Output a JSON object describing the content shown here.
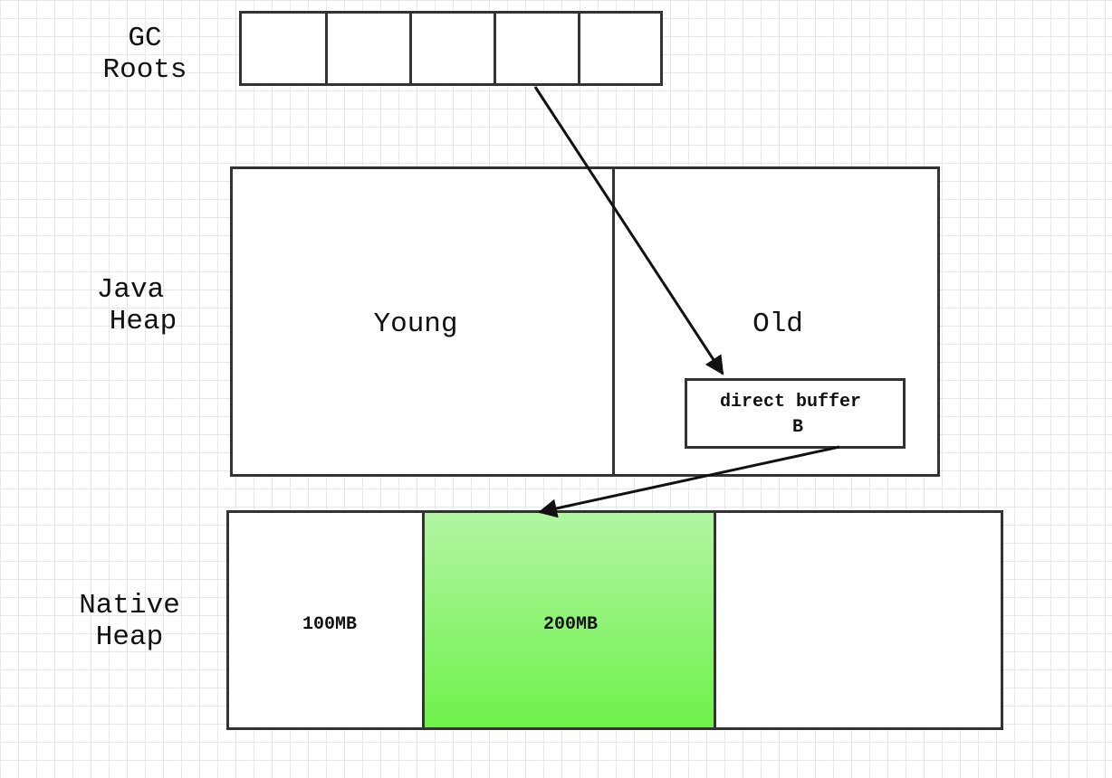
{
  "labels": {
    "gc_roots": [
      "GC",
      "Roots"
    ],
    "java_heap": [
      "Java",
      "Heap"
    ],
    "native_heap": [
      "Native",
      "Heap"
    ]
  },
  "gc_roots_slots": 5,
  "java_heap": {
    "young": "Young",
    "old": "Old",
    "direct_buffer": [
      "direct buffer",
      "B"
    ]
  },
  "native_heap": {
    "block_1": "100MB",
    "block_2": "200MB",
    "block_3": ""
  },
  "colors": {
    "allocated_top": "#b2f5a3",
    "allocated_bottom": "#6ef24a",
    "border": "#333333",
    "arrow": "#111111"
  }
}
